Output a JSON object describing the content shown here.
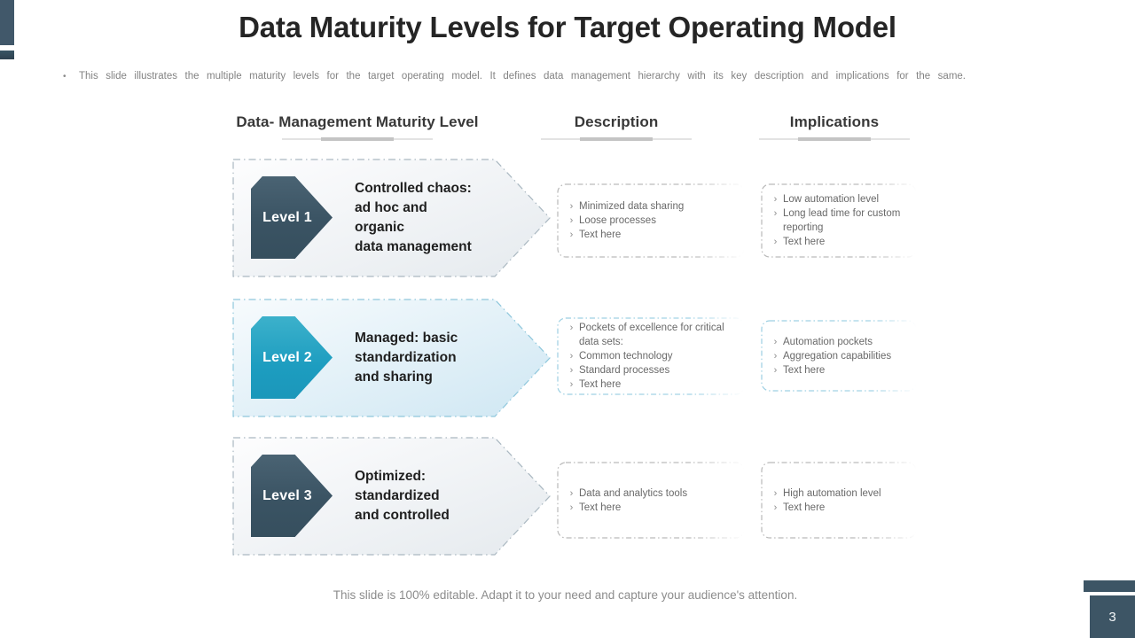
{
  "slide": {
    "title": "Data Maturity Levels for Target Operating Model",
    "subtitle_marker": "•",
    "subtitle": "This slide illustrates the multiple maturity levels for the target operating model. It defines data management hierarchy with its key description and implications for the same.",
    "footer": "This slide is 100% editable. Adapt it to your need and capture your audience's attention.",
    "page_number": "3"
  },
  "columns": {
    "maturity": "Data- Management Maturity Level",
    "description": "Description",
    "implications": "Implications"
  },
  "bullets": {
    "marker": "›"
  },
  "colors": {
    "slate": "#3d5565",
    "teal": "#1d9dc0",
    "arrow_fill_gray": "#e7ecef",
    "arrow_fill_blue": "#d3e9f4",
    "box_border_gray": "#b9b9b9",
    "box_border_blue": "#9ccfe2",
    "title_text": "#252525",
    "muted_text": "#838383"
  },
  "rows": [
    {
      "level_label": "Level 1",
      "title_lines": [
        "Controlled chaos:",
        "ad hoc and",
        "organic",
        "data management"
      ],
      "description": [
        "Minimized data sharing",
        "Loose processes",
        "Text here"
      ],
      "implications": [
        "Low automation level",
        "Long lead time for custom reporting",
        "Text here"
      ]
    },
    {
      "level_label": "Level 2",
      "title_lines": [
        "Managed: basic",
        "standardization",
        "and sharing"
      ],
      "description": [
        "Pockets of excellence for critical data sets:",
        "Common technology",
        "Standard processes",
        "Text here"
      ],
      "implications": [
        "Automation pockets",
        "Aggregation capabilities",
        "Text here"
      ]
    },
    {
      "level_label": "Level 3",
      "title_lines": [
        "Optimized:",
        "standardized",
        "and controlled"
      ],
      "description": [
        "Data and analytics tools",
        "Text here"
      ],
      "implications": [
        "High automation level",
        "Text here"
      ]
    }
  ]
}
